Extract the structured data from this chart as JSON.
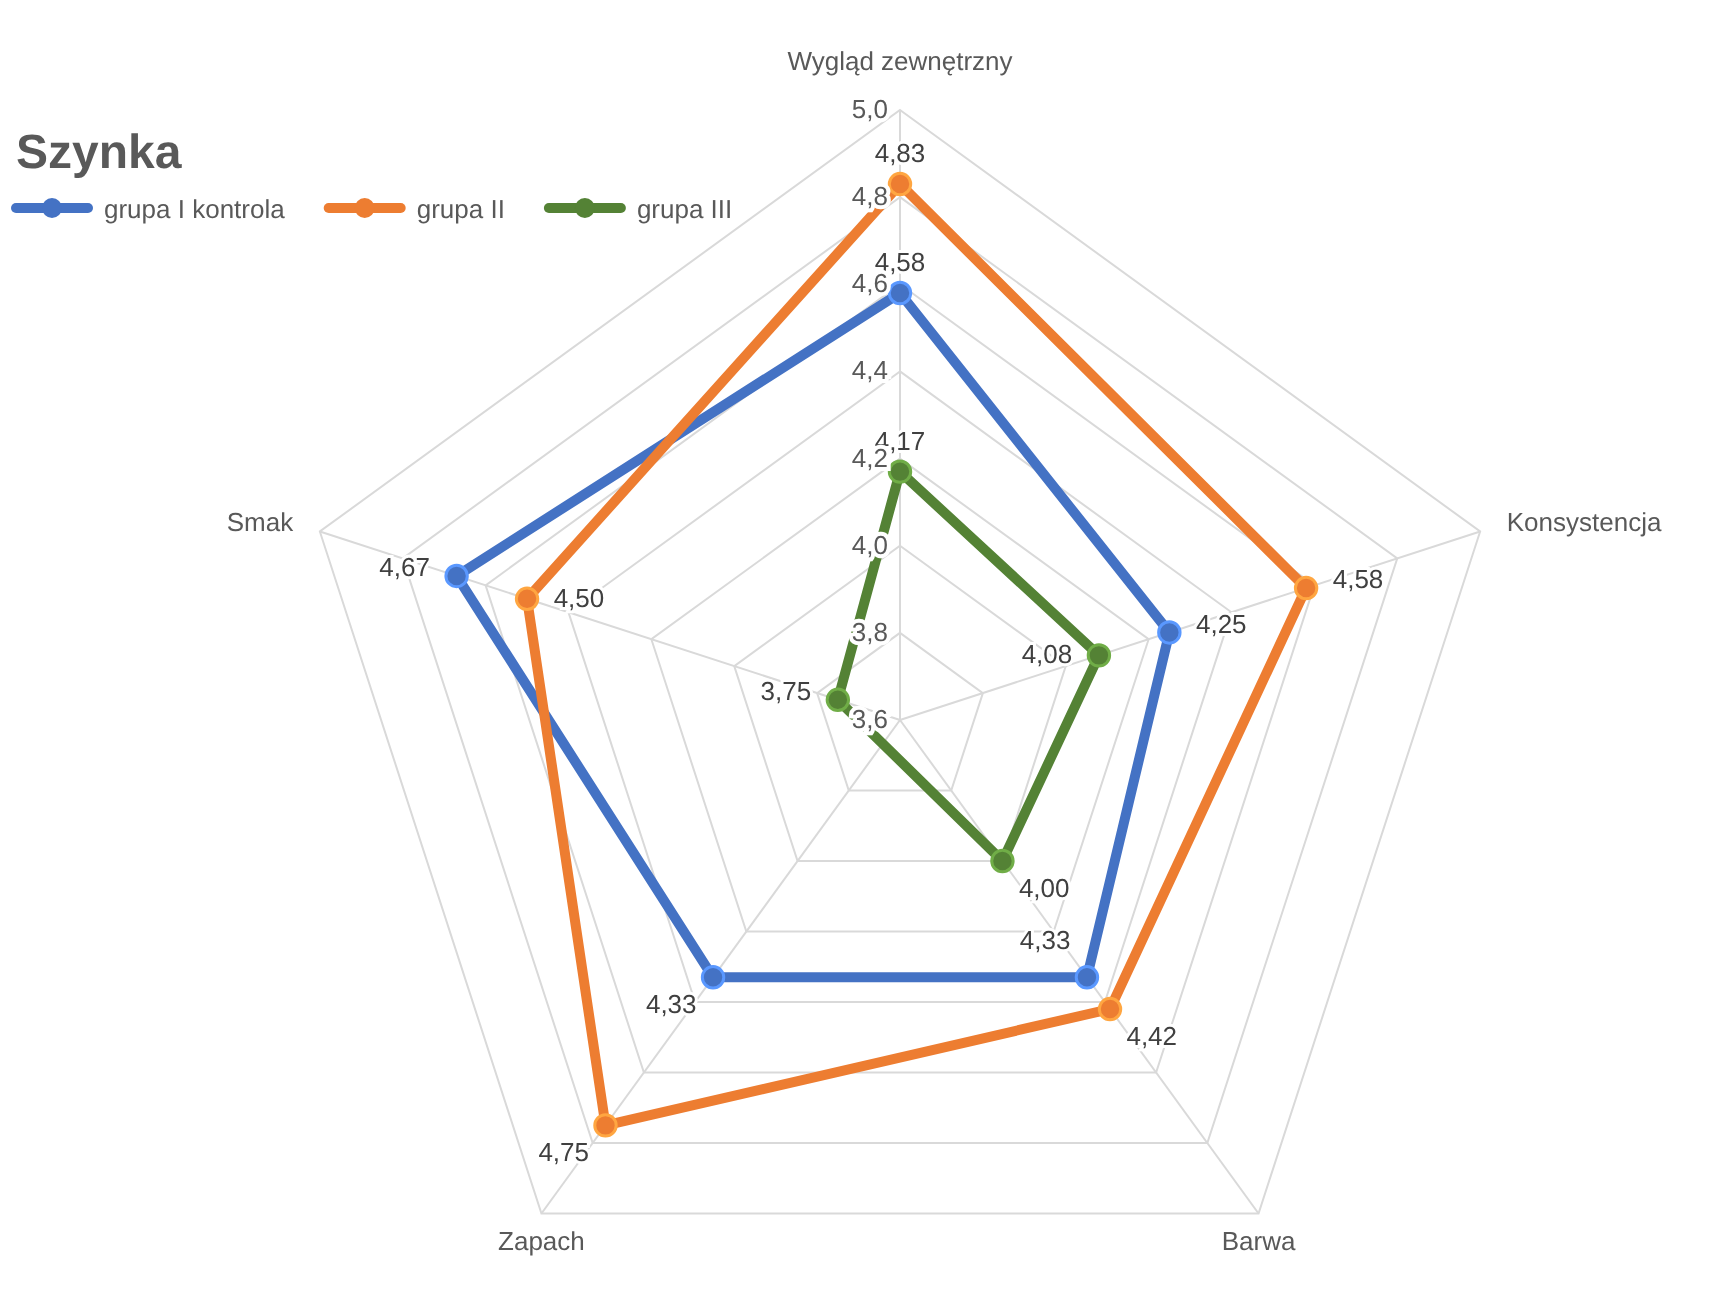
{
  "chart_data": {
    "type": "radar",
    "title": "Szynka",
    "categories": [
      "Wygląd zewnętrzny",
      "Konsystencja",
      "Barwa",
      "Zapach",
      "Smak"
    ],
    "ylim": [
      3.6,
      5.0
    ],
    "yticks": [
      {
        "value": 3.6,
        "label": "3,6"
      },
      {
        "value": 3.8,
        "label": "3,8"
      },
      {
        "value": 4.0,
        "label": "4,0"
      },
      {
        "value": 4.2,
        "label": "4,2"
      },
      {
        "value": 4.4,
        "label": "4,4"
      },
      {
        "value": 4.6,
        "label": "4,6"
      },
      {
        "value": 4.8,
        "label": "4,8"
      },
      {
        "value": 5.0,
        "label": "5,0"
      }
    ],
    "series": [
      {
        "name": "grupa I kontrola",
        "color": "#4472c4",
        "values": [
          4.58,
          4.25,
          4.33,
          4.33,
          4.67
        ],
        "value_labels": [
          "4,58",
          "4,25",
          "4,33",
          "4,33",
          "4,67"
        ]
      },
      {
        "name": "grupa II",
        "color": "#ed7d31",
        "values": [
          4.83,
          4.58,
          4.42,
          4.75,
          4.5
        ],
        "value_labels": [
          "4,83",
          "4,58",
          "4,42",
          "4,75",
          "4,50"
        ]
      },
      {
        "name": "grupa III",
        "color": "#548235",
        "values": [
          4.17,
          4.08,
          4.0,
          null,
          3.75
        ],
        "value_labels": [
          "4,17",
          "4,08",
          "4,00",
          null,
          "3,75"
        ]
      }
    ],
    "grid": true,
    "legend": "top left",
    "marker": "circle",
    "line_style": "solid"
  }
}
